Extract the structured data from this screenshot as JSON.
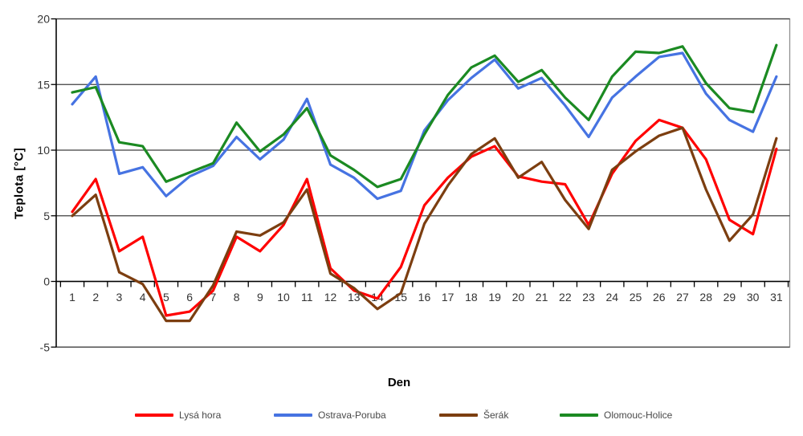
{
  "chart_data": {
    "type": "line",
    "title": "",
    "xlabel": "Den",
    "ylabel": "Teplota [°C]",
    "categories": [
      1,
      2,
      3,
      4,
      5,
      6,
      7,
      8,
      9,
      10,
      11,
      12,
      13,
      14,
      15,
      16,
      17,
      18,
      19,
      20,
      21,
      22,
      23,
      24,
      25,
      26,
      27,
      28,
      29,
      30,
      31
    ],
    "ylim": [
      -5,
      20
    ],
    "yticks": [
      20,
      15,
      10,
      5,
      0,
      -5
    ],
    "grid": true,
    "legend_position": "bottom",
    "axis_color": "#000000",
    "gridline_color": "#3f3f3f",
    "border_color": "#909090",
    "series": [
      {
        "name": "Lysá hora",
        "color": "#ff0000",
        "values": [
          5.3,
          7.8,
          2.3,
          3.4,
          -2.6,
          -2.3,
          -0.7,
          3.4,
          2.3,
          4.3,
          7.8,
          1.0,
          -0.7,
          -1.3,
          1.1,
          5.8,
          7.9,
          9.5,
          10.3,
          8.0,
          7.6,
          7.4,
          4.3,
          8.2,
          10.7,
          12.3,
          11.7,
          9.3,
          4.7,
          3.6,
          10.1
        ]
      },
      {
        "name": "Ostrava-Poruba",
        "color": "#4673e2",
        "values": [
          13.5,
          15.6,
          8.2,
          8.7,
          6.5,
          8.0,
          8.8,
          11.0,
          9.3,
          10.8,
          13.9,
          8.9,
          7.9,
          6.3,
          6.9,
          11.5,
          13.8,
          15.5,
          16.9,
          14.7,
          15.5,
          13.4,
          11.0,
          14.0,
          15.6,
          17.1,
          17.4,
          14.3,
          12.3,
          11.4,
          15.6
        ]
      },
      {
        "name": "Šerák",
        "color": "#7c3e10",
        "values": [
          5.0,
          6.6,
          0.7,
          -0.2,
          -3.0,
          -3.0,
          -0.3,
          3.8,
          3.5,
          4.5,
          7.0,
          0.6,
          -0.5,
          -2.1,
          -0.9,
          4.4,
          7.3,
          9.7,
          10.9,
          7.9,
          9.1,
          6.2,
          4.0,
          8.5,
          9.9,
          11.1,
          11.7,
          7.0,
          3.1,
          5.1,
          10.9
        ]
      },
      {
        "name": "Olomouc-Holice",
        "color": "#1b8a22",
        "values": [
          14.4,
          14.8,
          10.6,
          10.3,
          7.6,
          8.3,
          9.0,
          12.1,
          9.9,
          11.2,
          13.2,
          9.6,
          8.5,
          7.2,
          7.8,
          11.2,
          14.2,
          16.3,
          17.2,
          15.2,
          16.1,
          14.0,
          12.3,
          15.6,
          17.5,
          17.4,
          17.9,
          15.1,
          13.2,
          12.9,
          18.0
        ]
      }
    ]
  }
}
